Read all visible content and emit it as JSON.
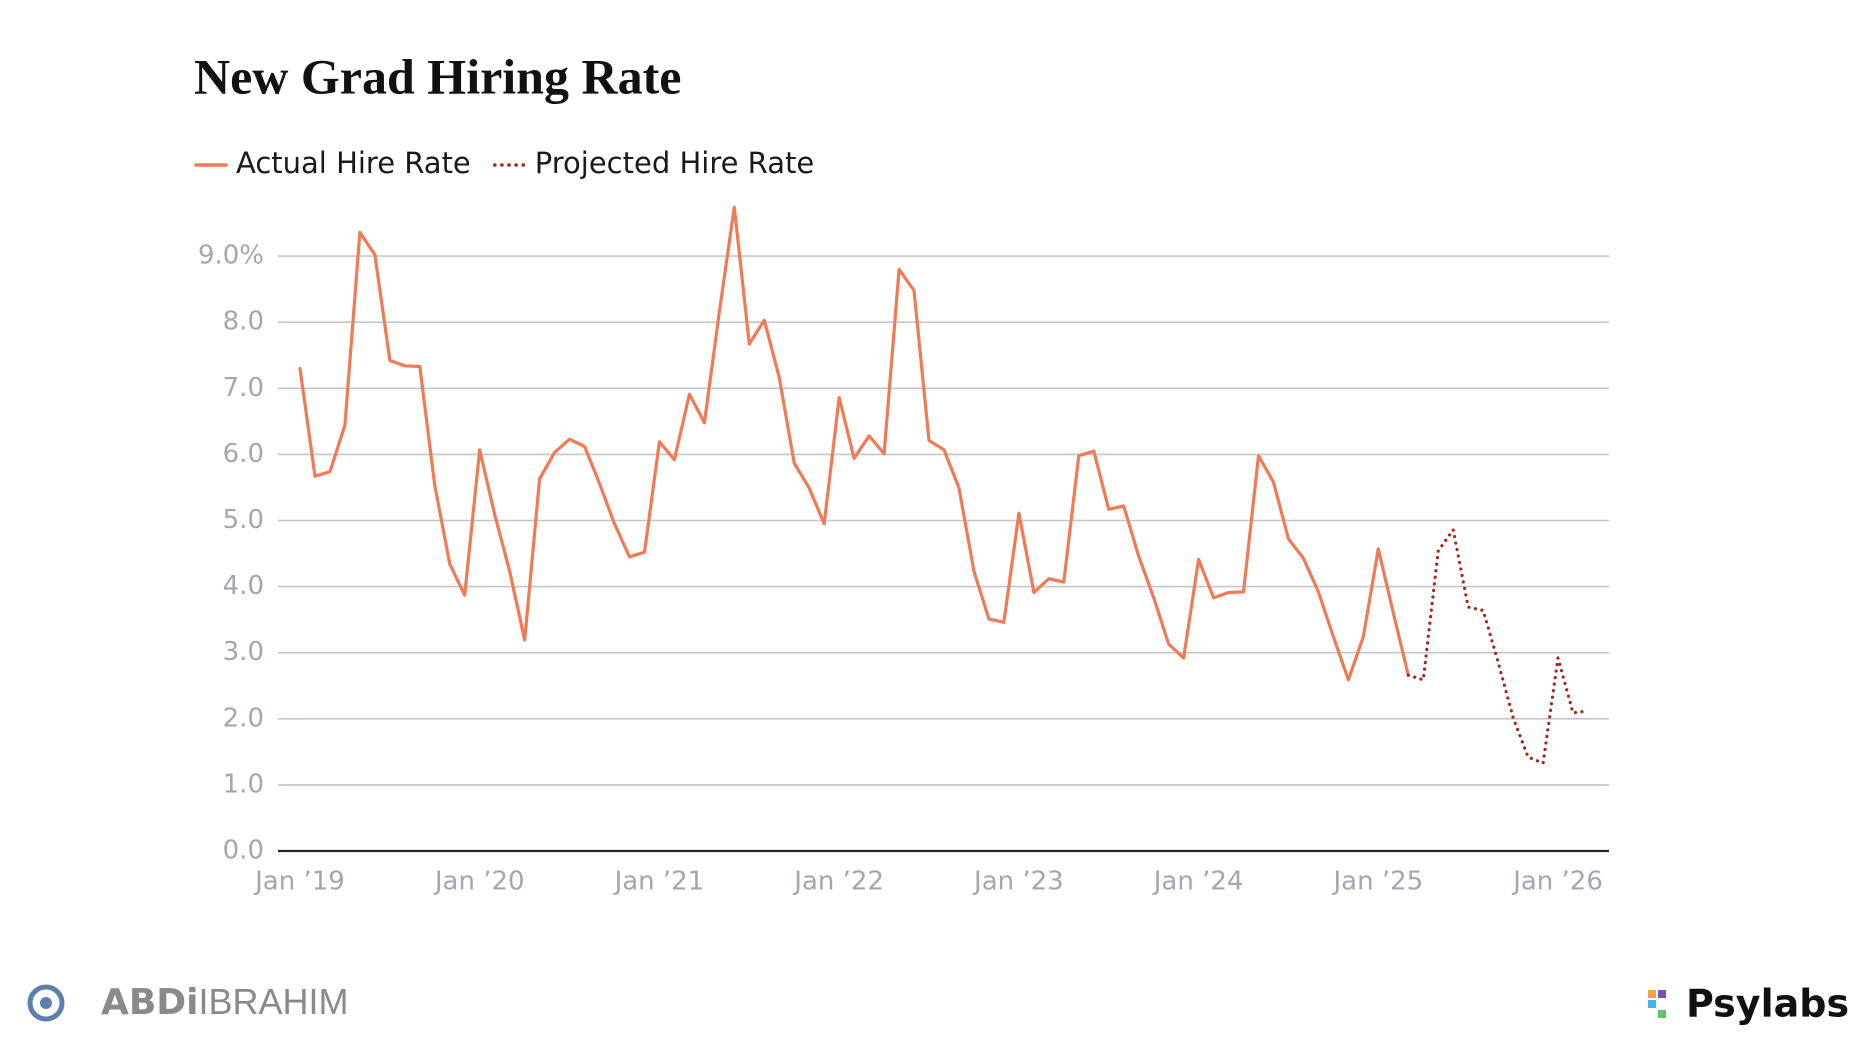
{
  "chart_data": {
    "type": "line",
    "title": "New Grad Hiring Rate",
    "categories": [
      "Jan ’19",
      null,
      null,
      null,
      null,
      null,
      null,
      null,
      null,
      null,
      null,
      null,
      "Jan ’20",
      null,
      null,
      null,
      null,
      null,
      null,
      null,
      null,
      null,
      null,
      null,
      "Jan ’21",
      null,
      null,
      null,
      null,
      null,
      null,
      null,
      null,
      null,
      null,
      null,
      "Jan ’22",
      null,
      null,
      null,
      null,
      null,
      null,
      null,
      null,
      null,
      null,
      null,
      "Jan ’23",
      null,
      null,
      null,
      null,
      null,
      null,
      null,
      null,
      null,
      null,
      null,
      "Jan ’24",
      null,
      null,
      null,
      null,
      null,
      null,
      null,
      null,
      null,
      null,
      null,
      "Jan ’25",
      null,
      null,
      null,
      null,
      null,
      null,
      null,
      null,
      null,
      null,
      null,
      "Jan ’26",
      null,
      null
    ],
    "series": [
      {
        "name": "Actual Hire Rate",
        "color": "#f07a55",
        "style": "solid",
        "values": [
          7.3,
          5.67,
          5.74,
          6.44,
          9.36,
          9.02,
          7.42,
          7.34,
          7.33,
          5.53,
          4.34,
          3.87,
          6.07,
          5.09,
          4.23,
          3.19,
          5.63,
          6.03,
          6.23,
          6.12,
          5.56,
          4.95,
          4.45,
          4.52,
          6.19,
          5.92,
          6.91,
          6.48,
          8.15,
          9.74,
          7.67,
          8.03,
          7.16,
          5.87,
          5.49,
          4.95,
          6.86,
          5.94,
          6.28,
          6.01,
          8.8,
          8.48,
          6.21,
          6.07,
          5.49,
          4.23,
          3.51,
          3.46,
          5.11,
          3.91,
          4.12,
          4.07,
          5.98,
          6.05,
          5.17,
          5.22,
          4.46,
          3.83,
          3.13,
          2.92,
          4.41,
          3.83,
          3.91,
          3.92,
          5.98,
          5.58,
          4.72,
          4.43,
          3.92,
          3.24,
          2.59,
          3.24,
          4.57,
          3.6,
          2.66,
          null,
          null,
          null,
          null,
          null,
          null,
          null,
          null,
          null,
          null,
          null,
          null
        ]
      },
      {
        "name": "Projected Hire Rate",
        "color": "#a3261c",
        "style": "dotted",
        "values": [
          null,
          null,
          null,
          null,
          null,
          null,
          null,
          null,
          null,
          null,
          null,
          null,
          null,
          null,
          null,
          null,
          null,
          null,
          null,
          null,
          null,
          null,
          null,
          null,
          null,
          null,
          null,
          null,
          null,
          null,
          null,
          null,
          null,
          null,
          null,
          null,
          null,
          null,
          null,
          null,
          null,
          null,
          null,
          null,
          null,
          null,
          null,
          null,
          null,
          null,
          null,
          null,
          null,
          null,
          null,
          null,
          null,
          null,
          null,
          null,
          null,
          null,
          null,
          null,
          null,
          null,
          null,
          null,
          null,
          null,
          null,
          null,
          null,
          null,
          2.66,
          2.59,
          4.54,
          4.86,
          3.69,
          3.64,
          2.86,
          2.02,
          1.42,
          1.33,
          2.92,
          2.09,
          2.12
        ]
      }
    ],
    "ylim": [
      0,
      10
    ],
    "yticks": [
      {
        "value": 0,
        "label": "0.0"
      },
      {
        "value": 1,
        "label": "1.0"
      },
      {
        "value": 2,
        "label": "2.0"
      },
      {
        "value": 3,
        "label": "3.0"
      },
      {
        "value": 4,
        "label": "4.0"
      },
      {
        "value": 5,
        "label": "5.0"
      },
      {
        "value": 6,
        "label": "6.0"
      },
      {
        "value": 7,
        "label": "7.0"
      },
      {
        "value": 8,
        "label": "8.0"
      },
      {
        "value": 9,
        "label": "9.0%"
      }
    ],
    "grid": true,
    "legend": "top-left"
  },
  "footer": {
    "left_logo_bold": "ABDi",
    "left_logo_light": "IBRAHIM",
    "right_logo": "Psylabs"
  }
}
